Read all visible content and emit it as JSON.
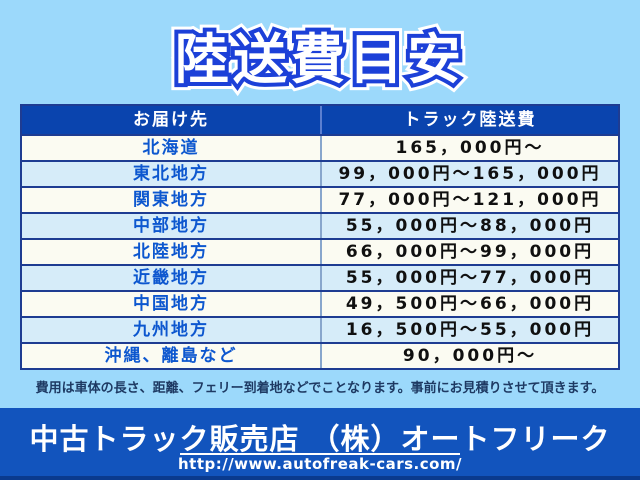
{
  "title": "陸送費目安",
  "table": {
    "headers": {
      "destination": "お届け先",
      "fee": "トラック陸送費"
    },
    "rows": [
      {
        "region": "北海道",
        "price": "165，000円～"
      },
      {
        "region": "東北地方",
        "price": "99，000円～165，000円"
      },
      {
        "region": "関東地方",
        "price": "77，000円～121，000円"
      },
      {
        "region": "中部地方",
        "price": "55，000円～88，000円"
      },
      {
        "region": "北陸地方",
        "price": "66，000円～99，000円"
      },
      {
        "region": "近畿地方",
        "price": "55，000円～77，000円"
      },
      {
        "region": "中国地方",
        "price": "49，500円～66，000円"
      },
      {
        "region": "九州地方",
        "price": "16，500円～55，000円"
      },
      {
        "region": "沖縄、離島など",
        "price": "90，000円～"
      }
    ]
  },
  "note": "費用は車体の長さ、距離、フェリー到着地などでことなります。事前にお見積りさせて頂きます。",
  "footer": {
    "company": "中古トラック販売店 （株）オートフリーク",
    "url": "http://www.autofreak-cars.com/"
  },
  "colors": {
    "background": "#9cd9fb",
    "header_bg": "#0a44ae",
    "row_white": "#fbfbf2",
    "row_cyan": "#d6ecf9",
    "border_navy": "#1e3c92",
    "region_text": "#0d57cf",
    "title_outline": "#1c40d8",
    "banner_bg": "#1254bd",
    "note_text": "#1e3a63"
  }
}
